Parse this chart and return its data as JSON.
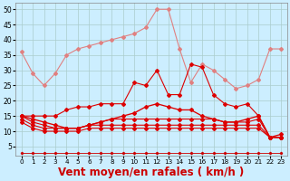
{
  "xlabel": "Vent moyen/en rafales ( km/h )",
  "bg_color": "#cceeff",
  "grid_color": "#aacccc",
  "xlim": [
    -0.5,
    23.5
  ],
  "ylim": [
    2,
    52
  ],
  "yticks": [
    5,
    10,
    15,
    20,
    25,
    30,
    35,
    40,
    45,
    50
  ],
  "xticks": [
    0,
    1,
    2,
    3,
    4,
    5,
    6,
    7,
    8,
    9,
    10,
    11,
    12,
    13,
    14,
    15,
    16,
    17,
    18,
    19,
    20,
    21,
    22,
    23
  ],
  "hours": [
    0,
    1,
    2,
    3,
    4,
    5,
    6,
    7,
    8,
    9,
    10,
    11,
    12,
    13,
    14,
    15,
    16,
    17,
    18,
    19,
    20,
    21,
    22,
    23
  ],
  "line_bottom": [
    3,
    3,
    3,
    3,
    3,
    3,
    3,
    3,
    3,
    3,
    3,
    3,
    3,
    3,
    3,
    3,
    3,
    3,
    3,
    3,
    3,
    3,
    3,
    3
  ],
  "line_gust_light": [
    36,
    29,
    25,
    29,
    35,
    37,
    38,
    39,
    40,
    41,
    42,
    44,
    50,
    50,
    37,
    26,
    32,
    30,
    27,
    24,
    25,
    27,
    37,
    37
  ],
  "line_gust_dark": [
    15,
    15,
    15,
    15,
    17,
    18,
    18,
    19,
    19,
    19,
    26,
    25,
    30,
    22,
    22,
    32,
    31,
    22,
    19,
    18,
    19,
    15,
    8,
    8
  ],
  "line_wind1": [
    15,
    14,
    13,
    12,
    11,
    11,
    12,
    13,
    14,
    15,
    16,
    18,
    19,
    18,
    17,
    17,
    15,
    14,
    13,
    13,
    14,
    15,
    8,
    9
  ],
  "line_wind2": [
    15,
    13,
    12,
    11,
    11,
    11,
    12,
    13,
    14,
    14,
    14,
    14,
    14,
    14,
    14,
    14,
    14,
    14,
    13,
    13,
    13,
    14,
    8,
    8
  ],
  "line_wind3": [
    14,
    12,
    11,
    11,
    11,
    11,
    12,
    12,
    12,
    12,
    12,
    12,
    12,
    12,
    12,
    12,
    12,
    12,
    12,
    12,
    12,
    12,
    8,
    8
  ],
  "line_wind4": [
    13,
    11,
    10,
    10,
    10,
    10,
    11,
    11,
    11,
    11,
    11,
    11,
    11,
    11,
    11,
    11,
    11,
    11,
    11,
    11,
    11,
    11,
    8,
    8
  ],
  "color_light": "#e08080",
  "color_dark": "#dd0000",
  "color_bottom": "#cc0000",
  "lw": 0.8,
  "ms": 2.0,
  "xlabel_color": "#cc0000",
  "xlabel_fontsize": 8.5
}
